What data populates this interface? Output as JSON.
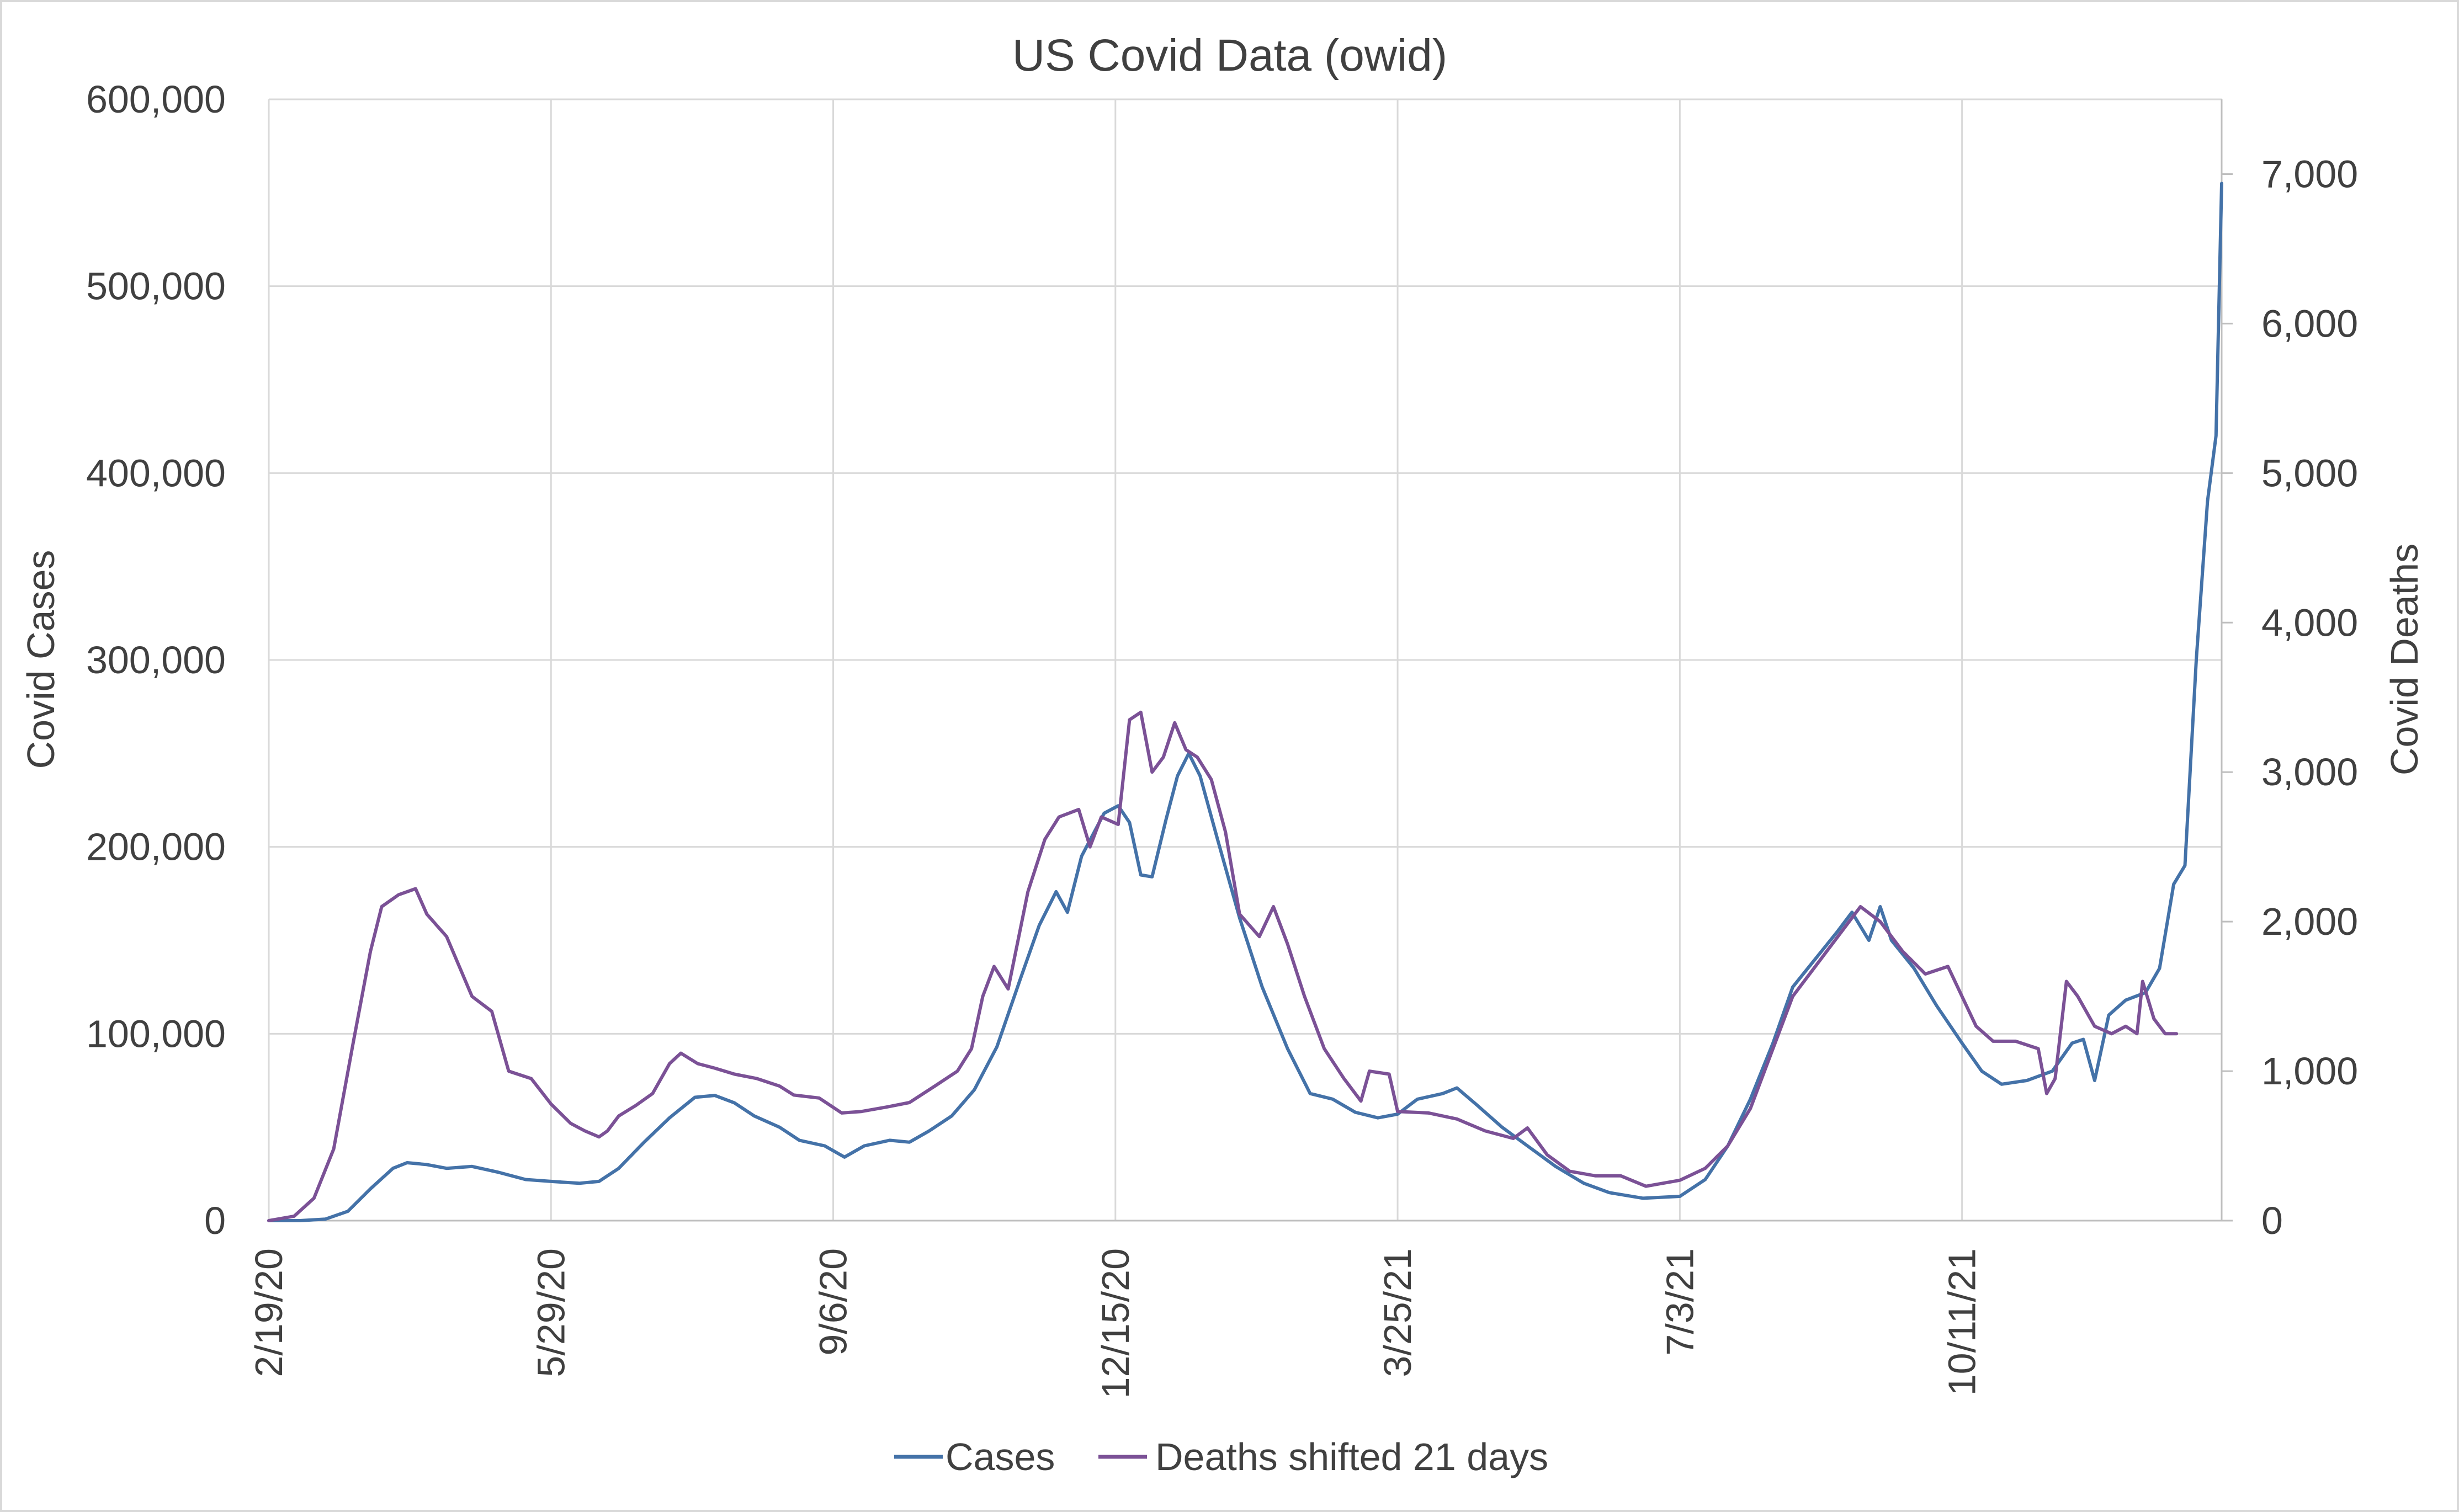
{
  "chart_data": {
    "type": "line",
    "title": "US Covid Data (owid)",
    "ylabel_left": "Covid Cases",
    "ylabel_right": "Covid Deaths",
    "xlabel": "",
    "x_tick_labels": [
      "2/19/20",
      "5/29/20",
      "9/6/20",
      "12/15/20",
      "3/25/21",
      "7/3/21",
      "10/11/21"
    ],
    "x_range": [
      "2/19/20",
      "1/11/22"
    ],
    "ylim_left": [
      0,
      600000
    ],
    "ylim_right": [
      0,
      7500
    ],
    "left_ticks": [
      "0",
      "100,000",
      "200,000",
      "300,000",
      "400,000",
      "500,000",
      "600,000"
    ],
    "right_ticks": [
      "0",
      "1,000",
      "2,000",
      "3,000",
      "4,000",
      "5,000",
      "6,000",
      "7,000"
    ],
    "grid": true,
    "legend_position": "bottom",
    "colors": {
      "cases": "#4472a8",
      "deaths": "#7b5196",
      "grid": "#d9d9d9",
      "axis": "#bfbfbf",
      "text": "#404040"
    },
    "series": [
      {
        "name": "Cases",
        "axis": "left",
        "points": [
          [
            "2/19/20",
            0
          ],
          [
            "3/1/20",
            0
          ],
          [
            "3/10/20",
            800
          ],
          [
            "3/18/20",
            5000
          ],
          [
            "3/26/20",
            17000
          ],
          [
            "4/3/20",
            28000
          ],
          [
            "4/8/20",
            31000
          ],
          [
            "4/15/20",
            30000
          ],
          [
            "4/22/20",
            28000
          ],
          [
            "5/1/20",
            29000
          ],
          [
            "5/10/20",
            26000
          ],
          [
            "5/20/20",
            22000
          ],
          [
            "5/29/20",
            21000
          ],
          [
            "6/8/20",
            20000
          ],
          [
            "6/15/20",
            21000
          ],
          [
            "6/22/20",
            28000
          ],
          [
            "7/1/20",
            42000
          ],
          [
            "7/10/20",
            55000
          ],
          [
            "7/19/20",
            66000
          ],
          [
            "7/26/20",
            67000
          ],
          [
            "8/2/20",
            63000
          ],
          [
            "8/9/20",
            56000
          ],
          [
            "8/18/20",
            50000
          ],
          [
            "8/25/20",
            43000
          ],
          [
            "9/3/20",
            40000
          ],
          [
            "9/10/20",
            34000
          ],
          [
            "9/17/20",
            40000
          ],
          [
            "9/26/20",
            43000
          ],
          [
            "10/3/20",
            42000
          ],
          [
            "10/10/20",
            48000
          ],
          [
            "10/18/20",
            56000
          ],
          [
            "10/26/20",
            70000
          ],
          [
            "11/3/20",
            93000
          ],
          [
            "11/11/20",
            128000
          ],
          [
            "11/18/20",
            158000
          ],
          [
            "11/24/20",
            176000
          ],
          [
            "11/28/20",
            165000
          ],
          [
            "12/3/20",
            195000
          ],
          [
            "12/11/20",
            218000
          ],
          [
            "12/16/20",
            222000
          ],
          [
            "12/20/20",
            213000
          ],
          [
            "12/24/20",
            185000
          ],
          [
            "12/28/20",
            184000
          ],
          [
            "1/2/21",
            215000
          ],
          [
            "1/6/21",
            238000
          ],
          [
            "1/10/21",
            250000
          ],
          [
            "1/14/21",
            238000
          ],
          [
            "1/20/21",
            205000
          ],
          [
            "1/28/21",
            162000
          ],
          [
            "2/5/21",
            125000
          ],
          [
            "2/14/21",
            92000
          ],
          [
            "2/22/21",
            68000
          ],
          [
            "3/2/21",
            65000
          ],
          [
            "3/10/21",
            58000
          ],
          [
            "3/18/21",
            55000
          ],
          [
            "3/25/21",
            57000
          ],
          [
            "4/1/21",
            65000
          ],
          [
            "4/10/21",
            68000
          ],
          [
            "4/15/21",
            71000
          ],
          [
            "4/22/21",
            62000
          ],
          [
            "5/1/21",
            50000
          ],
          [
            "5/10/21",
            40000
          ],
          [
            "5/20/21",
            29000
          ],
          [
            "5/30/21",
            20000
          ],
          [
            "6/8/21",
            15000
          ],
          [
            "6/20/21",
            12000
          ],
          [
            "7/3/21",
            13000
          ],
          [
            "7/12/21",
            22000
          ],
          [
            "7/20/21",
            40000
          ],
          [
            "7/28/21",
            65000
          ],
          [
            "8/5/21",
            95000
          ],
          [
            "8/12/21",
            125000
          ],
          [
            "8/20/21",
            140000
          ],
          [
            "8/28/21",
            155000
          ],
          [
            "9/2/21",
            165000
          ],
          [
            "9/8/21",
            150000
          ],
          [
            "9/12/21",
            168000
          ],
          [
            "9/16/21",
            150000
          ],
          [
            "9/24/21",
            135000
          ],
          [
            "10/2/21",
            115000
          ],
          [
            "10/11/21",
            95000
          ],
          [
            "10/18/21",
            80000
          ],
          [
            "10/25/21",
            73000
          ],
          [
            "11/3/21",
            75000
          ],
          [
            "11/12/21",
            80000
          ],
          [
            "11/19/21",
            95000
          ],
          [
            "11/23/21",
            97000
          ],
          [
            "11/27/21",
            75000
          ],
          [
            "12/2/21",
            110000
          ],
          [
            "12/8/21",
            118000
          ],
          [
            "12/15/21",
            122000
          ],
          [
            "12/20/21",
            135000
          ],
          [
            "12/25/21",
            180000
          ],
          [
            "12/29/21",
            190000
          ],
          [
            "1/2/22",
            300000
          ],
          [
            "1/6/22",
            385000
          ],
          [
            "1/9/22",
            420000
          ],
          [
            "1/11/22",
            555000
          ]
        ]
      },
      {
        "name": "Deaths shifted 21 days",
        "axis": "right",
        "points": [
          [
            "2/19/20",
            0
          ],
          [
            "2/28/20",
            30
          ],
          [
            "3/6/20",
            150
          ],
          [
            "3/13/20",
            480
          ],
          [
            "3/20/20",
            1200
          ],
          [
            "3/26/20",
            1800
          ],
          [
            "3/30/20",
            2100
          ],
          [
            "4/5/20",
            2180
          ],
          [
            "4/11/20",
            2220
          ],
          [
            "4/15/20",
            2050
          ],
          [
            "4/22/20",
            1900
          ],
          [
            "5/1/20",
            1500
          ],
          [
            "5/8/20",
            1400
          ],
          [
            "5/14/20",
            1000
          ],
          [
            "5/22/20",
            950
          ],
          [
            "5/29/20",
            780
          ],
          [
            "6/5/20",
            650
          ],
          [
            "6/10/20",
            600
          ],
          [
            "6/15/20",
            560
          ],
          [
            "6/18/20",
            600
          ],
          [
            "6/22/20",
            700
          ],
          [
            "6/28/20",
            770
          ],
          [
            "7/4/20",
            850
          ],
          [
            "7/10/20",
            1050
          ],
          [
            "7/14/20",
            1120
          ],
          [
            "7/20/20",
            1050
          ],
          [
            "7/26/20",
            1020
          ],
          [
            "8/2/20",
            980
          ],
          [
            "8/10/20",
            950
          ],
          [
            "8/18/20",
            900
          ],
          [
            "8/23/20",
            840
          ],
          [
            "9/1/20",
            820
          ],
          [
            "9/9/20",
            720
          ],
          [
            "9/16/20",
            730
          ],
          [
            "9/25/20",
            760
          ],
          [
            "10/3/20",
            790
          ],
          [
            "10/12/20",
            900
          ],
          [
            "10/20/20",
            1000
          ],
          [
            "10/25/20",
            1150
          ],
          [
            "10/29/20",
            1500
          ],
          [
            "11/2/20",
            1700
          ],
          [
            "11/7/20",
            1550
          ],
          [
            "11/14/20",
            2200
          ],
          [
            "11/20/20",
            2550
          ],
          [
            "11/25/20",
            2700
          ],
          [
            "12/2/20",
            2750
          ],
          [
            "12/6/20",
            2500
          ],
          [
            "12/10/20",
            2700
          ],
          [
            "12/16/20",
            2650
          ],
          [
            "12/20/20",
            3350
          ],
          [
            "12/24/20",
            3400
          ],
          [
            "12/28/20",
            3000
          ],
          [
            "1/1/21",
            3100
          ],
          [
            "1/5/21",
            3330
          ],
          [
            "1/9/21",
            3150
          ],
          [
            "1/13/21",
            3100
          ],
          [
            "1/18/21",
            2950
          ],
          [
            "1/23/21",
            2600
          ],
          [
            "1/28/21",
            2050
          ],
          [
            "2/4/21",
            1900
          ],
          [
            "2/9/21",
            2100
          ],
          [
            "2/14/21",
            1850
          ],
          [
            "2/20/21",
            1500
          ],
          [
            "2/27/21",
            1150
          ],
          [
            "3/6/21",
            950
          ],
          [
            "3/12/21",
            800
          ],
          [
            "3/15/21",
            1000
          ],
          [
            "3/22/21",
            980
          ],
          [
            "3/25/21",
            730
          ],
          [
            "4/5/21",
            720
          ],
          [
            "4/15/21",
            680
          ],
          [
            "4/25/21",
            600
          ],
          [
            "5/5/21",
            550
          ],
          [
            "5/10/21",
            620
          ],
          [
            "5/17/21",
            440
          ],
          [
            "5/25/21",
            330
          ],
          [
            "6/3/21",
            300
          ],
          [
            "6/12/21",
            300
          ],
          [
            "6/21/21",
            230
          ],
          [
            "7/3/21",
            270
          ],
          [
            "7/12/21",
            350
          ],
          [
            "7/20/21",
            500
          ],
          [
            "7/28/21",
            750
          ],
          [
            "8/6/21",
            1200
          ],
          [
            "8/12/21",
            1500
          ],
          [
            "8/20/21",
            1700
          ],
          [
            "8/28/21",
            1900
          ],
          [
            "9/5/21",
            2100
          ],
          [
            "9/12/21",
            2000
          ],
          [
            "9/20/21",
            1800
          ],
          [
            "9/28/21",
            1650
          ],
          [
            "10/6/21",
            1700
          ],
          [
            "10/11/21",
            1500
          ],
          [
            "10/16/21",
            1300
          ],
          [
            "10/22/21",
            1200
          ],
          [
            "10/30/21",
            1200
          ],
          [
            "11/7/21",
            1150
          ],
          [
            "11/10/21",
            850
          ],
          [
            "11/13/21",
            950
          ],
          [
            "11/17/21",
            1600
          ],
          [
            "11/21/21",
            1500
          ],
          [
            "11/27/21",
            1300
          ],
          [
            "12/3/21",
            1250
          ],
          [
            "12/8/21",
            1300
          ],
          [
            "12/12/21",
            1250
          ],
          [
            "12/14/21",
            1600
          ],
          [
            "12/18/21",
            1350
          ],
          [
            "12/22/21",
            1250
          ],
          [
            "12/26/21",
            1250
          ]
        ]
      }
    ]
  }
}
